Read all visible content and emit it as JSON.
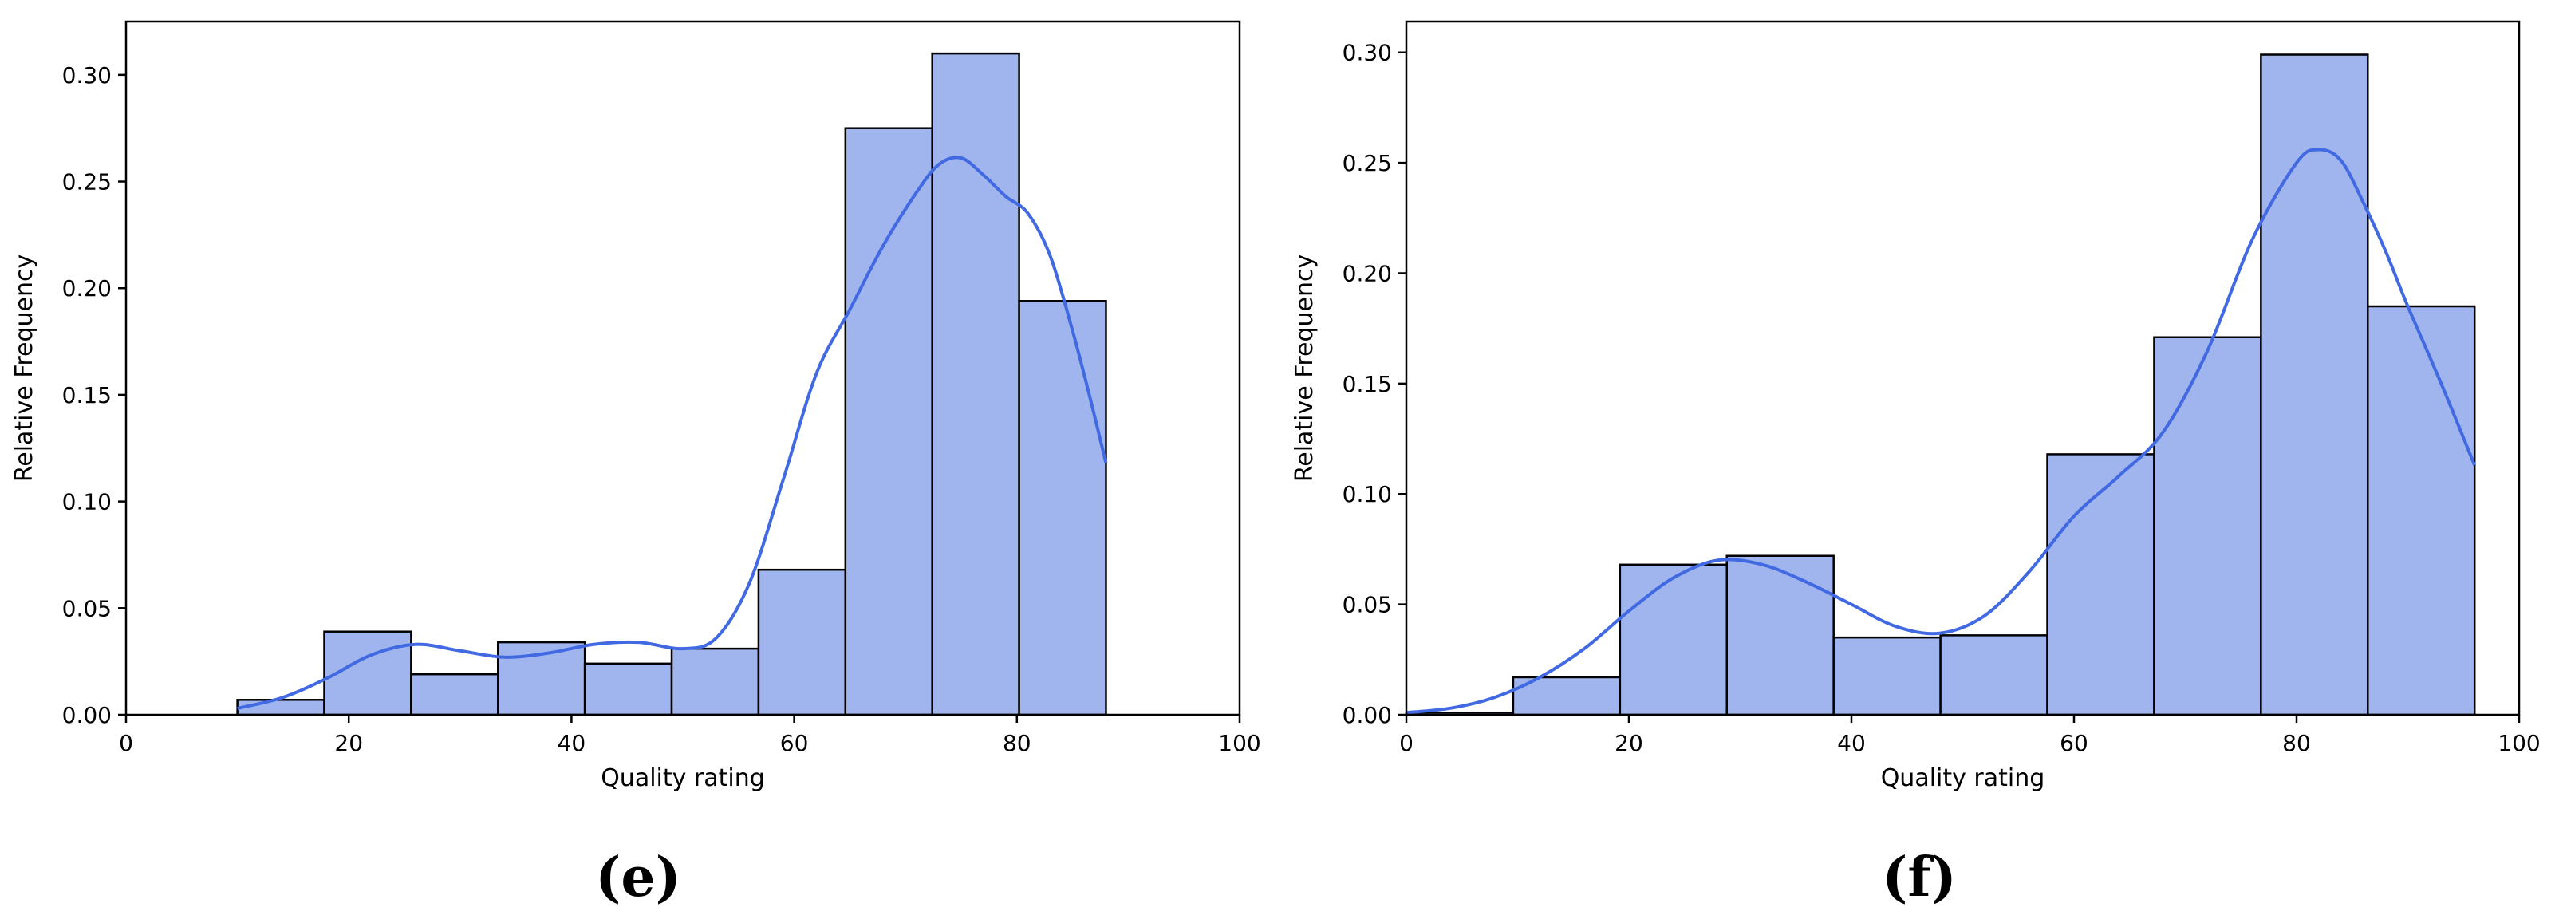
{
  "colors": {
    "bar_fill": "#a0b4ee",
    "bar_edge": "#000000",
    "kde_line": "#4169e1"
  },
  "chart_data": [
    {
      "type": "bar",
      "panel": "(e)",
      "xlabel": "Quality rating",
      "ylabel": "Relative Frequency",
      "xlim": [
        0,
        100
      ],
      "ylim": [
        0,
        0.325
      ],
      "xticks": [
        "0",
        "20",
        "40",
        "60",
        "80",
        "100"
      ],
      "yticks": [
        "0.00",
        "0.05",
        "0.10",
        "0.15",
        "0.20",
        "0.25",
        "0.30"
      ],
      "grid": false,
      "bins": [
        {
          "x0": 10.0,
          "x1": 17.8,
          "value": 0.007
        },
        {
          "x0": 17.8,
          "x1": 25.6,
          "value": 0.039
        },
        {
          "x0": 25.6,
          "x1": 33.4,
          "value": 0.019
        },
        {
          "x0": 33.4,
          "x1": 41.2,
          "value": 0.034
        },
        {
          "x0": 41.2,
          "x1": 49.0,
          "value": 0.024
        },
        {
          "x0": 49.0,
          "x1": 56.8,
          "value": 0.031
        },
        {
          "x0": 56.8,
          "x1": 64.6,
          "value": 0.068
        },
        {
          "x0": 64.6,
          "x1": 72.4,
          "value": 0.275
        },
        {
          "x0": 72.4,
          "x1": 80.2,
          "value": 0.31
        },
        {
          "x0": 80.2,
          "x1": 88.0,
          "value": 0.194
        }
      ],
      "kde": {
        "x": [
          10,
          14,
          18,
          22,
          26,
          30,
          34,
          38,
          42,
          46,
          50,
          53,
          56,
          59,
          62,
          65,
          68,
          71,
          73,
          75,
          77,
          79,
          81,
          83,
          85,
          86.5,
          88
        ],
        "y": [
          0.003,
          0.008,
          0.017,
          0.028,
          0.033,
          0.03,
          0.027,
          0.029,
          0.033,
          0.034,
          0.031,
          0.036,
          0.062,
          0.11,
          0.16,
          0.19,
          0.22,
          0.245,
          0.258,
          0.261,
          0.253,
          0.243,
          0.235,
          0.215,
          0.18,
          0.15,
          0.118
        ]
      }
    },
    {
      "type": "bar",
      "panel": "(f)",
      "xlabel": "Quality rating",
      "ylabel": "Relative Frequency",
      "xlim": [
        0,
        100
      ],
      "ylim": [
        0,
        0.314
      ],
      "xticks": [
        "0",
        "20",
        "40",
        "60",
        "80",
        "100"
      ],
      "yticks": [
        "0.00",
        "0.05",
        "0.10",
        "0.15",
        "0.20",
        "0.25",
        "0.30"
      ],
      "grid": false,
      "bins": [
        {
          "x0": 0.0,
          "x1": 9.6,
          "value": 0.001
        },
        {
          "x0": 9.6,
          "x1": 19.2,
          "value": 0.017
        },
        {
          "x0": 19.2,
          "x1": 28.8,
          "value": 0.068
        },
        {
          "x0": 28.8,
          "x1": 38.4,
          "value": 0.072
        },
        {
          "x0": 38.4,
          "x1": 48.0,
          "value": 0.035
        },
        {
          "x0": 48.0,
          "x1": 57.6,
          "value": 0.036
        },
        {
          "x0": 57.6,
          "x1": 67.2,
          "value": 0.118
        },
        {
          "x0": 67.2,
          "x1": 76.8,
          "value": 0.171
        },
        {
          "x0": 76.8,
          "x1": 86.4,
          "value": 0.299
        },
        {
          "x0": 86.4,
          "x1": 96.0,
          "value": 0.185
        }
      ],
      "kde": {
        "x": [
          0,
          4,
          8,
          12,
          16,
          20,
          24,
          28,
          32,
          36,
          40,
          44,
          48,
          52,
          56,
          60,
          64,
          68,
          72,
          76,
          80,
          82,
          84,
          86,
          88,
          90,
          93,
          96
        ],
        "y": [
          0.001,
          0.003,
          0.008,
          0.017,
          0.03,
          0.047,
          0.062,
          0.07,
          0.068,
          0.06,
          0.05,
          0.04,
          0.037,
          0.045,
          0.065,
          0.09,
          0.108,
          0.128,
          0.165,
          0.215,
          0.25,
          0.256,
          0.251,
          0.232,
          0.21,
          0.185,
          0.15,
          0.113
        ]
      }
    }
  ]
}
